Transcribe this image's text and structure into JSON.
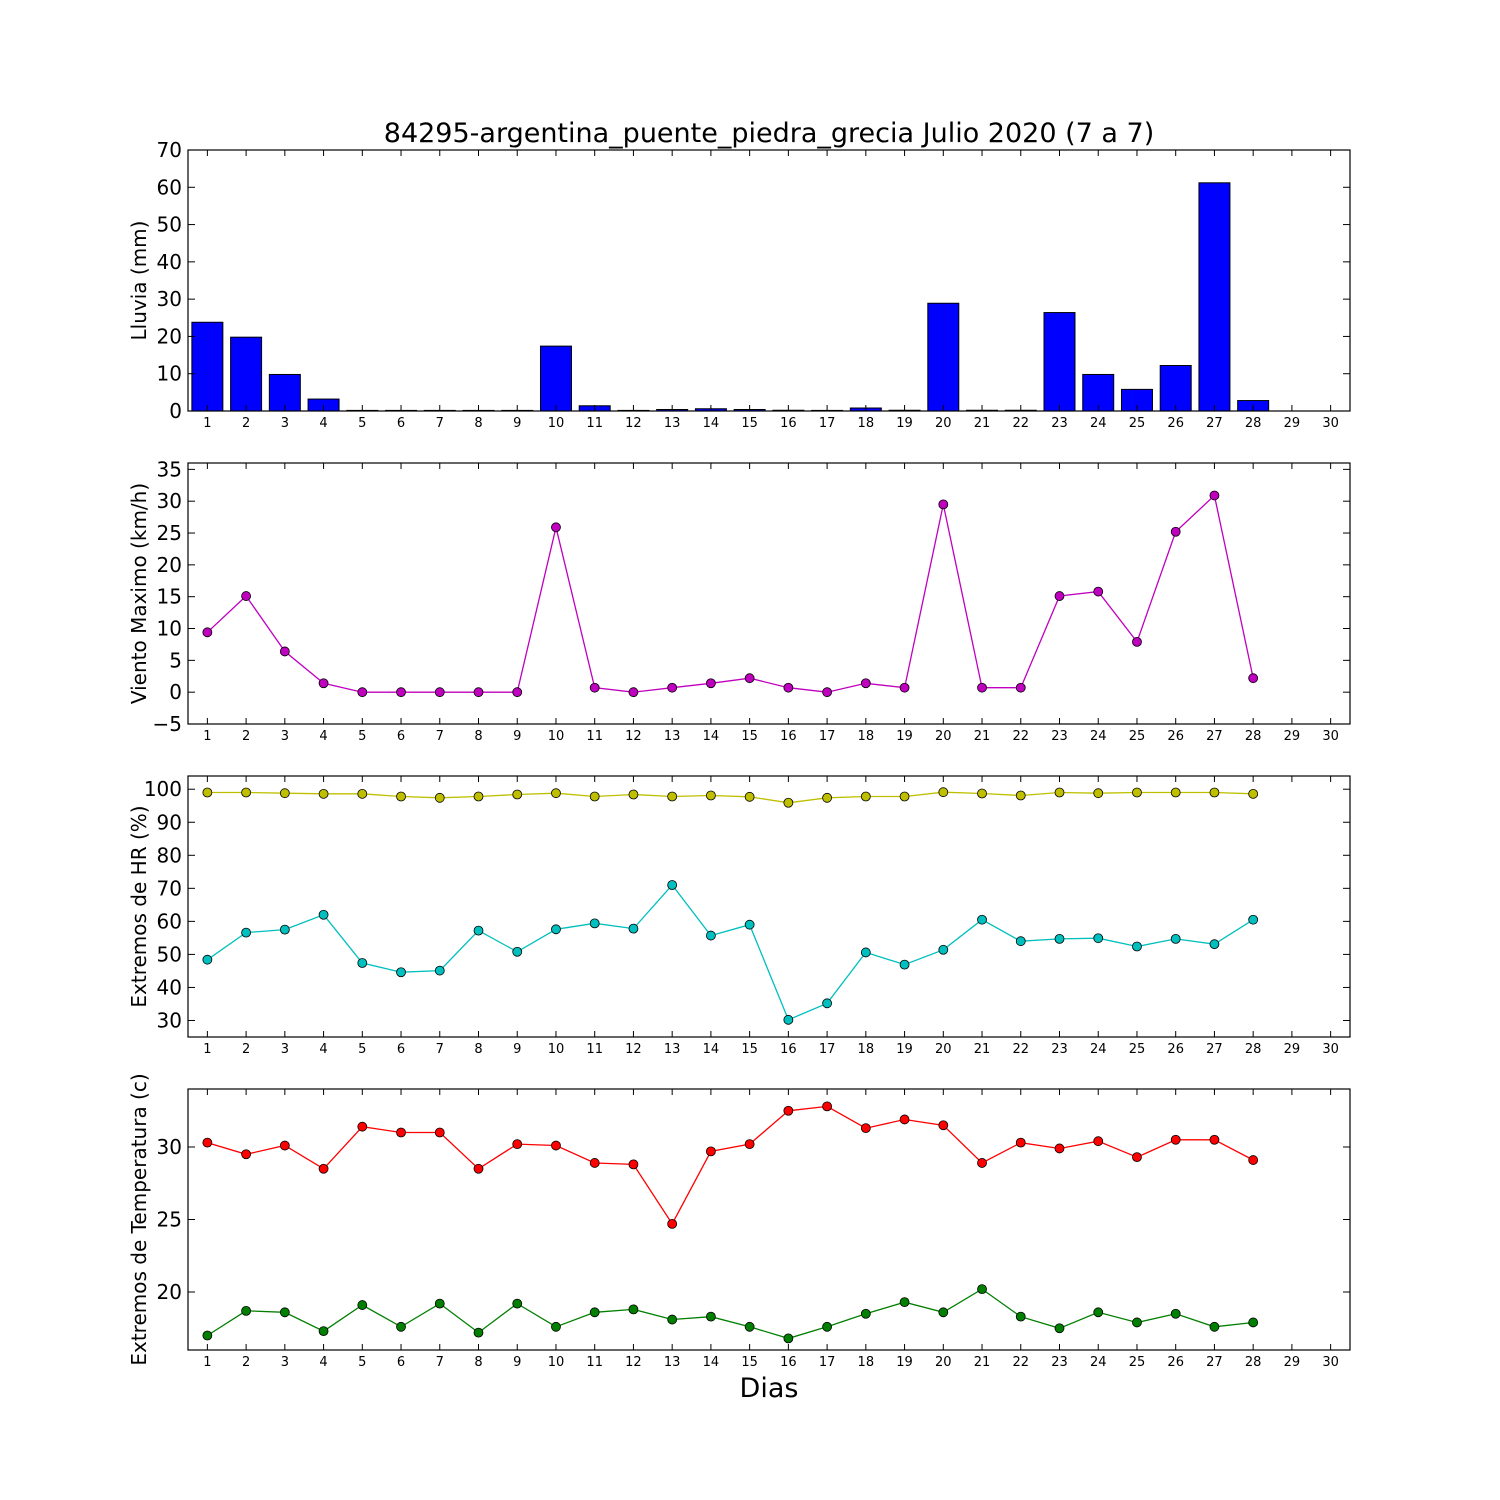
{
  "figure": {
    "title": "84295-argentina_puente_piedra_grecia Julio 2020  (7 a 7)",
    "xlabel": "Dias"
  },
  "chart_data": [
    {
      "type": "bar",
      "ylabel": "Lluvia (mm)",
      "xlim": [
        0.5,
        30.5
      ],
      "ylim": [
        0,
        70
      ],
      "yticks": [
        0,
        10,
        20,
        30,
        40,
        50,
        60,
        70
      ],
      "xticks": [
        1,
        2,
        3,
        4,
        5,
        6,
        7,
        8,
        9,
        10,
        11,
        12,
        13,
        14,
        15,
        16,
        17,
        18,
        19,
        20,
        21,
        22,
        23,
        24,
        25,
        26,
        27,
        28,
        29,
        30
      ],
      "grid": false,
      "series": [
        {
          "color": "#0000ff",
          "x": [
            1,
            2,
            3,
            4,
            5,
            6,
            7,
            8,
            9,
            10,
            11,
            12,
            13,
            14,
            15,
            16,
            17,
            18,
            19,
            20,
            21,
            22,
            23,
            24,
            25,
            26,
            27,
            28
          ],
          "values": [
            23.8,
            19.8,
            9.8,
            3.2,
            0,
            0,
            0,
            0,
            0,
            17.4,
            1.4,
            0,
            0.4,
            0.6,
            0.4,
            0.2,
            0,
            0.8,
            0.2,
            28.9,
            0.2,
            0.2,
            26.4,
            9.8,
            5.8,
            12.2,
            61.2,
            2.8
          ]
        }
      ]
    },
    {
      "type": "line",
      "ylabel": "Viento Maximo (km/h)",
      "xlim": [
        0.5,
        30.5
      ],
      "ylim": [
        -5,
        36
      ],
      "yticks": [
        -5,
        0,
        5,
        10,
        15,
        20,
        25,
        30,
        35
      ],
      "xticks": [
        1,
        2,
        3,
        4,
        5,
        6,
        7,
        8,
        9,
        10,
        11,
        12,
        13,
        14,
        15,
        16,
        17,
        18,
        19,
        20,
        21,
        22,
        23,
        24,
        25,
        26,
        27,
        28,
        29,
        30
      ],
      "grid": false,
      "series": [
        {
          "color": "#bf00bf",
          "x": [
            1,
            2,
            3,
            4,
            5,
            6,
            7,
            8,
            9,
            10,
            11,
            12,
            13,
            14,
            15,
            16,
            17,
            18,
            19,
            20,
            21,
            22,
            23,
            24,
            25,
            26,
            27,
            28
          ],
          "values": [
            9.4,
            15.1,
            6.4,
            1.4,
            0,
            0,
            0,
            0,
            0,
            25.9,
            0.7,
            0,
            0.7,
            1.4,
            2.2,
            0.7,
            0,
            1.4,
            0.7,
            29.5,
            0.7,
            0.7,
            15.1,
            15.8,
            7.9,
            25.2,
            30.9,
            2.2
          ]
        }
      ]
    },
    {
      "type": "line",
      "ylabel": "Extremos de HR (%)",
      "xlim": [
        0.5,
        30.5
      ],
      "ylim": [
        25,
        104
      ],
      "yticks": [
        30,
        40,
        50,
        60,
        70,
        80,
        90,
        100
      ],
      "xticks": [
        1,
        2,
        3,
        4,
        5,
        6,
        7,
        8,
        9,
        10,
        11,
        12,
        13,
        14,
        15,
        16,
        17,
        18,
        19,
        20,
        21,
        22,
        23,
        24,
        25,
        26,
        27,
        28,
        29,
        30
      ],
      "grid": false,
      "series": [
        {
          "color": "#bfbf00",
          "x": [
            1,
            2,
            3,
            4,
            5,
            6,
            7,
            8,
            9,
            10,
            11,
            12,
            13,
            14,
            15,
            16,
            17,
            18,
            19,
            20,
            21,
            22,
            23,
            24,
            25,
            26,
            27,
            28
          ],
          "values": [
            99,
            99,
            98.8,
            98.6,
            98.6,
            97.8,
            97.4,
            97.8,
            98.4,
            98.8,
            97.8,
            98.4,
            97.8,
            98.1,
            97.7,
            95.9,
            97.4,
            97.8,
            97.8,
            99.1,
            98.7,
            98.1,
            99,
            98.8,
            99,
            99,
            99,
            98.6
          ]
        },
        {
          "color": "#00bfbf",
          "x": [
            1,
            2,
            3,
            4,
            5,
            6,
            7,
            8,
            9,
            10,
            11,
            12,
            13,
            14,
            15,
            16,
            17,
            18,
            19,
            20,
            21,
            22,
            23,
            24,
            25,
            26,
            27,
            28
          ],
          "values": [
            48.4,
            56.6,
            57.5,
            62,
            47.4,
            44.6,
            45.1,
            57.2,
            50.8,
            57.6,
            59.4,
            57.8,
            71,
            55.7,
            59,
            30.2,
            35.2,
            50.6,
            46.9,
            51.4,
            60.5,
            54,
            54.7,
            54.9,
            52.4,
            54.7,
            53.1,
            60.5
          ]
        }
      ]
    },
    {
      "type": "line",
      "ylabel": "Extremos de Temperatura (c)",
      "xlim": [
        0.5,
        30.5
      ],
      "ylim": [
        16,
        34
      ],
      "yticks": [
        20,
        25,
        30
      ],
      "xticks": [
        1,
        2,
        3,
        4,
        5,
        6,
        7,
        8,
        9,
        10,
        11,
        12,
        13,
        14,
        15,
        16,
        17,
        18,
        19,
        20,
        21,
        22,
        23,
        24,
        25,
        26,
        27,
        28,
        29,
        30
      ],
      "grid": false,
      "series": [
        {
          "color": "#ff0000",
          "x": [
            1,
            2,
            3,
            4,
            5,
            6,
            7,
            8,
            9,
            10,
            11,
            12,
            13,
            14,
            15,
            16,
            17,
            18,
            19,
            20,
            21,
            22,
            23,
            24,
            25,
            26,
            27,
            28
          ],
          "values": [
            30.3,
            29.5,
            30.1,
            28.5,
            31.4,
            31,
            31,
            28.5,
            30.2,
            30.1,
            28.9,
            28.8,
            24.7,
            29.7,
            30.2,
            32.5,
            32.8,
            31.3,
            31.9,
            31.5,
            28.9,
            30.3,
            29.9,
            30.4,
            29.3,
            30.5,
            30.5,
            29.1
          ]
        },
        {
          "color": "#007f00",
          "x": [
            1,
            2,
            3,
            4,
            5,
            6,
            7,
            8,
            9,
            10,
            11,
            12,
            13,
            14,
            15,
            16,
            17,
            18,
            19,
            20,
            21,
            22,
            23,
            24,
            25,
            26,
            27,
            28
          ],
          "values": [
            17,
            18.7,
            18.6,
            17.3,
            19.1,
            17.6,
            19.2,
            17.2,
            19.2,
            17.6,
            18.6,
            18.8,
            18.1,
            18.3,
            17.6,
            16.8,
            17.6,
            18.5,
            19.3,
            18.6,
            20.2,
            18.3,
            17.5,
            18.6,
            17.9,
            18.5,
            17.6,
            17.9
          ]
        }
      ]
    }
  ]
}
